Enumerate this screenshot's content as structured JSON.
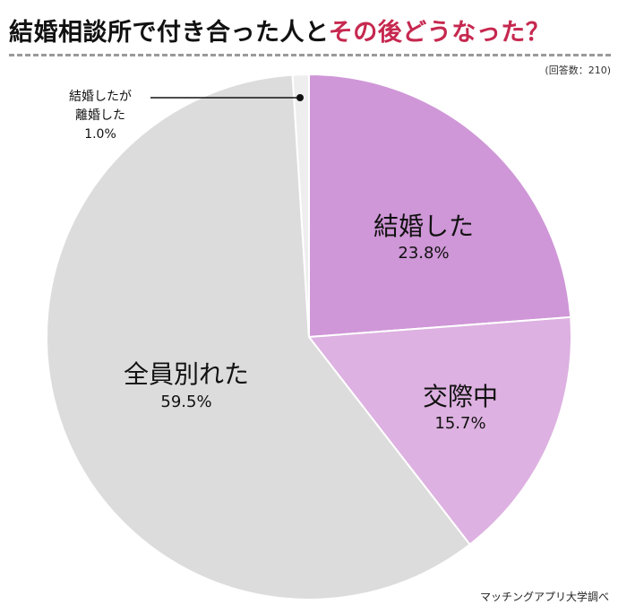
{
  "header": {
    "title_main": "結婚相談所で付き合った人と",
    "title_highlight": "その後どうなった？",
    "sample_note": "(回答数：210)"
  },
  "footer": {
    "source": "マッチングアプリ大学調べ"
  },
  "colors": {
    "married": "#cf97d7",
    "dating": "#ddb1e1",
    "all_broke_up": "#dcdcdc",
    "divorced": "#eeeeee",
    "title_highlight": "#c6284f"
  },
  "chart_data": {
    "type": "pie",
    "title": "結婚相談所で付き合った人とその後どうなった？",
    "sample": "(回答数：210)",
    "start": "12 o'clock",
    "direction": "clockwise",
    "slices": [
      {
        "label": "結婚した",
        "value": 23.8,
        "value_label": "23.8%",
        "color": "#cf97d7"
      },
      {
        "label": "交際中",
        "value": 15.7,
        "value_label": "15.7%",
        "color": "#ddb1e1"
      },
      {
        "label": "全員別れた",
        "value": 59.5,
        "value_label": "59.5%",
        "color": "#dcdcdc"
      },
      {
        "label_lines": [
          "結婚したが",
          "離婚した"
        ],
        "value": 1.0,
        "value_label": "1.0%",
        "color": "#eeeeee"
      }
    ]
  }
}
